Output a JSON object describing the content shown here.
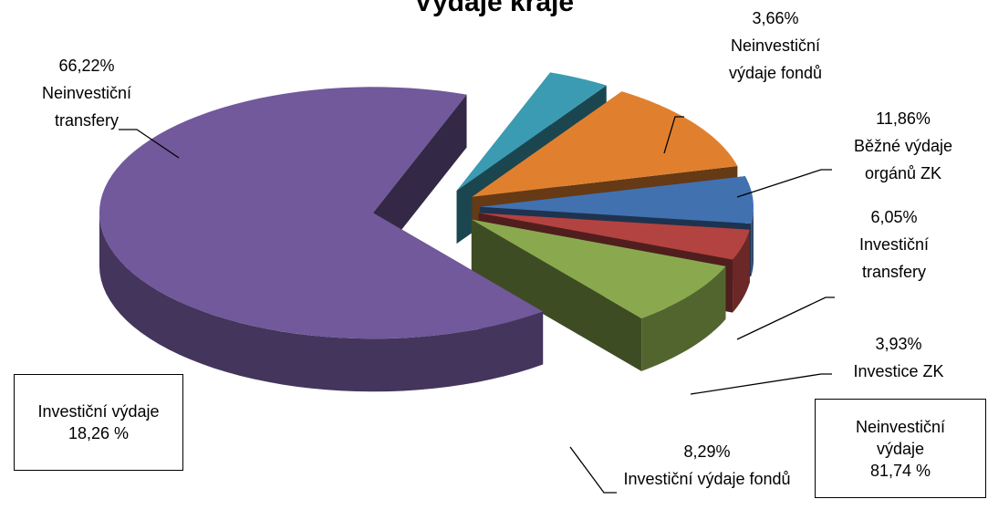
{
  "chart_data": {
    "type": "pie3d",
    "title": "Výdaje kraje",
    "categories": [
      "Neinvestiční výdaje fondů",
      "Běžné výdaje orgánů ZK",
      "Investiční transfery",
      "Investice ZK",
      "Investiční výdaje fondů",
      "Neinvestiční transfery"
    ],
    "values": [
      3.66,
      11.86,
      6.05,
      3.93,
      8.29,
      66.22
    ],
    "value_labels": [
      "3,66%",
      "11,86%",
      "6,05%",
      "3,93%",
      "8,29%",
      "66,22%"
    ],
    "colors": [
      "#3b9bb2",
      "#e0802f",
      "#4271b0",
      "#b24341",
      "#8aa94f",
      "#71599b"
    ],
    "annotations": [
      {
        "label": "Investiční výdaje",
        "value_label": "18,26 %"
      },
      {
        "label": "Neinvestiční výdaje",
        "value_label": "81,74 %"
      }
    ]
  }
}
